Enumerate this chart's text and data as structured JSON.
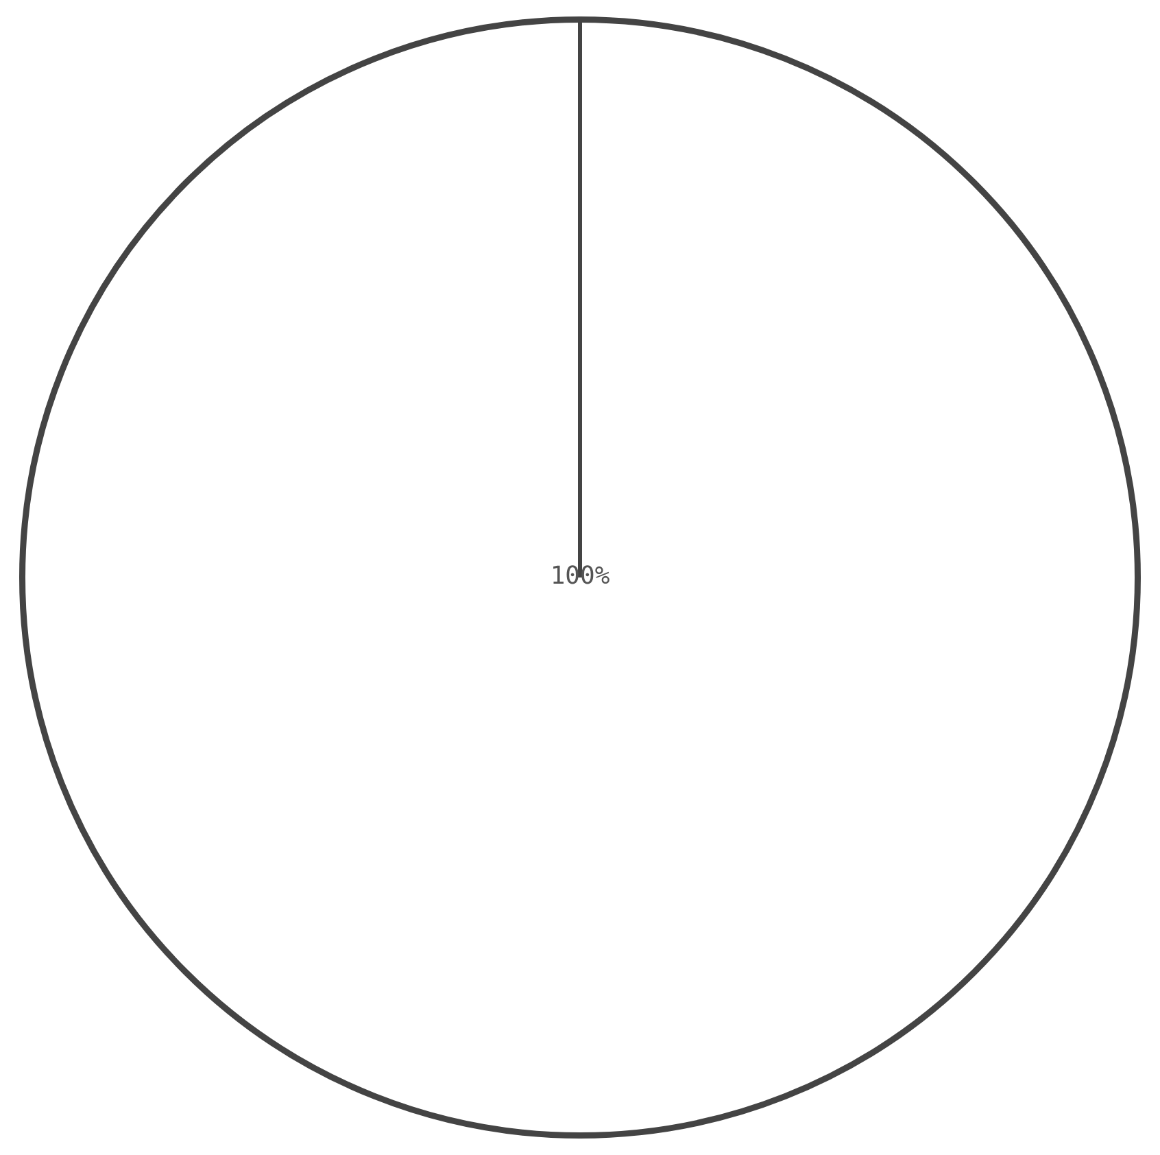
{
  "chart_data": {
    "type": "pie",
    "categories": [
      null
    ],
    "values": [
      100
    ],
    "colors": [
      "#ffffff"
    ],
    "value_labels": [
      "100%"
    ],
    "legend": false
  }
}
